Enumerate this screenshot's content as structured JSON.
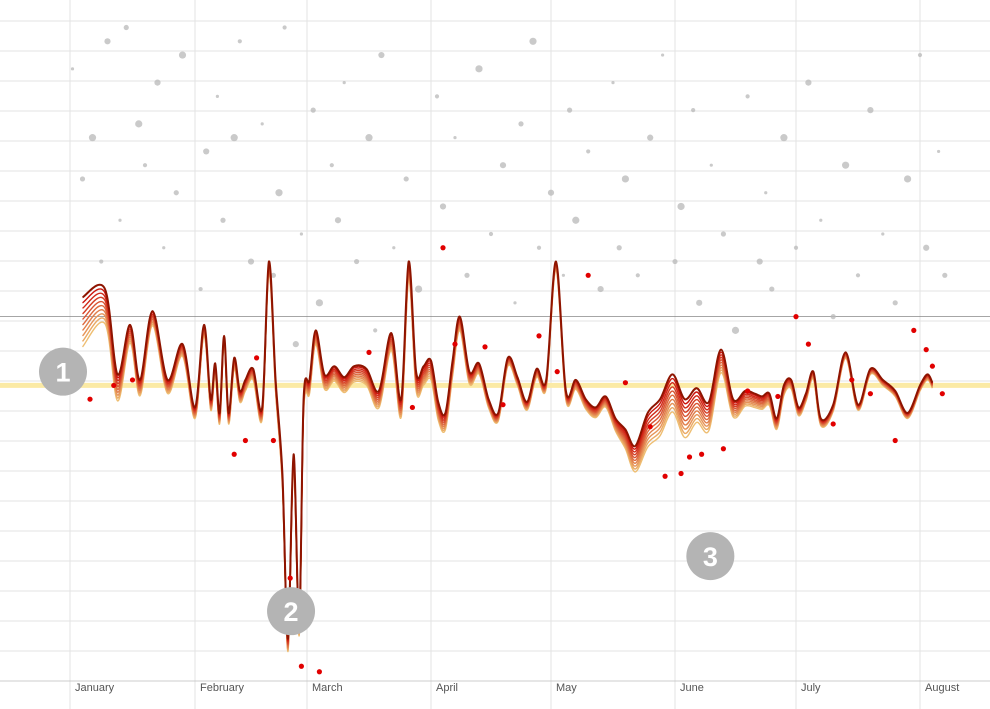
{
  "chart_data": {
    "type": "line",
    "title": "",
    "xlabel": "",
    "ylabel": "",
    "x_start_month": 1,
    "x_end_month": 8.28,
    "ylim": [
      -1.07,
      1.4
    ],
    "grid": true,
    "months": [
      "January",
      "February",
      "March",
      "April",
      "May",
      "June",
      "July",
      "August"
    ],
    "baseline_y": 0,
    "reference_y": 0.25,
    "colors": {
      "trend_dark": "#c80000",
      "trend_light": "#f0c878",
      "baseline": "#fbeaa5",
      "reference": "#888888",
      "grid": "#e3e3e3",
      "scatter_gray": "#b8b8b8",
      "scatter_red": "#e10000",
      "marker_fill": "#b4b4b4"
    },
    "trend": {
      "x": [
        1.1,
        1.28,
        1.38,
        1.48,
        1.56,
        1.66,
        1.78,
        1.9,
        2.0,
        2.08,
        2.14,
        2.18,
        2.22,
        2.26,
        2.3,
        2.35,
        2.4,
        2.45,
        2.52,
        2.6,
        2.66,
        2.72,
        2.78,
        2.83,
        2.88,
        2.93,
        2.97,
        3.02,
        3.07,
        3.14,
        3.22,
        3.3,
        3.38,
        3.48,
        3.58,
        3.68,
        3.76,
        3.82,
        3.88,
        3.94,
        4.0,
        4.06,
        4.12,
        4.18,
        4.24,
        4.32,
        4.4,
        4.48,
        4.56,
        4.64,
        4.72,
        4.8,
        4.88,
        4.96,
        5.04,
        5.12,
        5.2,
        5.28,
        5.36,
        5.44,
        5.52,
        5.6,
        5.68,
        5.78,
        5.88,
        5.98,
        6.08,
        6.18,
        6.28,
        6.38,
        6.48,
        6.58,
        6.66,
        6.72,
        6.78,
        6.84,
        6.9,
        6.96,
        7.02,
        7.08,
        7.14,
        7.2,
        7.3,
        7.4,
        7.5,
        7.6,
        7.7,
        7.8,
        7.9,
        8.0,
        8.06,
        8.1
      ],
      "values": [
        0.32,
        0.35,
        0.04,
        0.22,
        0.02,
        0.27,
        0.02,
        0.15,
        -0.08,
        0.22,
        -0.05,
        0.08,
        -0.1,
        0.18,
        -0.1,
        0.1,
        -0.02,
        0.02,
        0.06,
        -0.08,
        0.45,
        0.02,
        -0.32,
        -0.92,
        -0.25,
        -0.86,
        -0.05,
        0.02,
        0.2,
        0.04,
        0.07,
        0.03,
        0.07,
        0.06,
        -0.02,
        0.19,
        -0.05,
        0.45,
        0.05,
        0.07,
        0.09,
        -0.06,
        -0.1,
        0.09,
        0.25,
        0.05,
        0.08,
        -0.05,
        -0.1,
        0.1,
        0.03,
        -0.06,
        0.06,
        0.02,
        0.45,
        -0.02,
        0.02,
        -0.05,
        -0.08,
        -0.04,
        -0.12,
        -0.16,
        -0.22,
        -0.1,
        -0.05,
        0.04,
        -0.05,
        -0.01,
        -0.06,
        0.13,
        -0.05,
        -0.02,
        -0.03,
        -0.04,
        -0.03,
        -0.12,
        0.0,
        0.02,
        -0.08,
        -0.03,
        0.05,
        -0.12,
        -0.07,
        0.12,
        -0.07,
        0.06,
        0.02,
        -0.02,
        -0.1,
        0.0,
        0.04,
        0.01
      ]
    },
    "band": {
      "x": [
        1.0,
        1.5,
        2.0,
        2.5,
        3.0,
        3.5,
        4.0,
        4.5,
        5.0,
        5.5,
        5.8,
        6.1,
        6.5,
        7.0,
        7.5,
        8.0
      ],
      "offsets": [
        0.21,
        0.06,
        0.04,
        0.04,
        0.05,
        0.06,
        0.07,
        0.03,
        0.03,
        0.04,
        0.13,
        0.14,
        0.06,
        0.03,
        0.02,
        0.02
      ]
    },
    "scatter_gray": {
      "x": [
        1.02,
        1.1,
        1.18,
        1.25,
        1.3,
        1.4,
        1.45,
        1.55,
        1.6,
        1.7,
        1.75,
        1.85,
        1.9,
        2.05,
        2.1,
        2.2,
        2.25,
        2.35,
        2.4,
        2.5,
        2.6,
        2.7,
        2.75,
        2.8,
        2.9,
        2.95,
        3.05,
        3.1,
        3.2,
        3.25,
        3.3,
        3.4,
        3.5,
        3.55,
        3.6,
        3.7,
        3.8,
        3.9,
        4.05,
        4.1,
        4.2,
        4.3,
        4.4,
        4.5,
        4.6,
        4.7,
        4.75,
        4.85,
        4.9,
        5.0,
        5.1,
        5.15,
        5.2,
        5.3,
        5.4,
        5.5,
        5.55,
        5.6,
        5.7,
        5.8,
        5.9,
        6.0,
        6.05,
        6.15,
        6.2,
        6.3,
        6.4,
        6.5,
        6.6,
        6.7,
        6.75,
        6.8,
        6.9,
        7.0,
        7.1,
        7.2,
        7.3,
        7.4,
        7.5,
        7.6,
        7.7,
        7.8,
        7.9,
        8.0,
        8.05,
        8.15,
        8.2
      ],
      "values": [
        1.15,
        0.75,
        0.9,
        0.45,
        1.25,
        0.6,
        1.3,
        0.95,
        0.8,
        1.1,
        0.5,
        0.7,
        1.2,
        0.35,
        0.85,
        1.05,
        0.6,
        0.9,
        1.25,
        0.45,
        0.95,
        0.4,
        0.7,
        1.3,
        0.15,
        0.55,
        1.0,
        0.3,
        0.8,
        0.6,
        1.1,
        0.45,
        0.9,
        0.2,
        1.2,
        0.5,
        0.75,
        0.35,
        1.05,
        0.65,
        0.9,
        0.4,
        1.15,
        0.55,
        0.8,
        0.3,
        0.95,
        1.25,
        0.5,
        0.7,
        0.4,
        1.0,
        0.6,
        0.85,
        0.35,
        1.1,
        0.5,
        0.75,
        0.4,
        0.9,
        1.2,
        0.45,
        0.65,
        1.0,
        0.3,
        0.8,
        0.55,
        0.2,
        1.05,
        0.45,
        0.7,
        0.35,
        0.9,
        0.5,
        1.1,
        0.6,
        0.25,
        0.8,
        0.4,
        1.0,
        0.55,
        0.3,
        0.75,
        1.2,
        0.5,
        0.85,
        0.4
      ]
    },
    "scatter_red": {
      "x": [
        1.16,
        1.35,
        1.5,
        2.35,
        2.45,
        2.55,
        2.7,
        2.85,
        2.95,
        3.1,
        3.5,
        3.85,
        4.1,
        4.2,
        4.45,
        4.6,
        4.9,
        5.05,
        5.3,
        5.6,
        5.8,
        5.92,
        6.05,
        6.12,
        6.22,
        6.4,
        6.6,
        6.85,
        7.0,
        7.1,
        7.3,
        7.45,
        7.6,
        7.8,
        7.95,
        8.05,
        8.1,
        8.18
      ],
      "values": [
        -0.05,
        0.0,
        0.02,
        -0.25,
        -0.2,
        0.1,
        -0.2,
        -0.7,
        -1.02,
        -1.04,
        0.12,
        -0.08,
        0.5,
        0.15,
        0.14,
        -0.07,
        0.18,
        0.05,
        0.4,
        0.01,
        -0.15,
        -0.33,
        -0.32,
        -0.26,
        -0.25,
        -0.23,
        -0.02,
        -0.04,
        0.25,
        0.15,
        -0.14,
        0.02,
        -0.03,
        -0.2,
        0.2,
        0.13,
        0.07,
        -0.03
      ]
    },
    "markers": [
      {
        "label": "1",
        "x": 1.0,
        "y": 0.05
      },
      {
        "label": "2",
        "x": 2.92,
        "y": -0.82
      },
      {
        "label": "3",
        "x": 6.35,
        "y": -0.62
      }
    ]
  }
}
